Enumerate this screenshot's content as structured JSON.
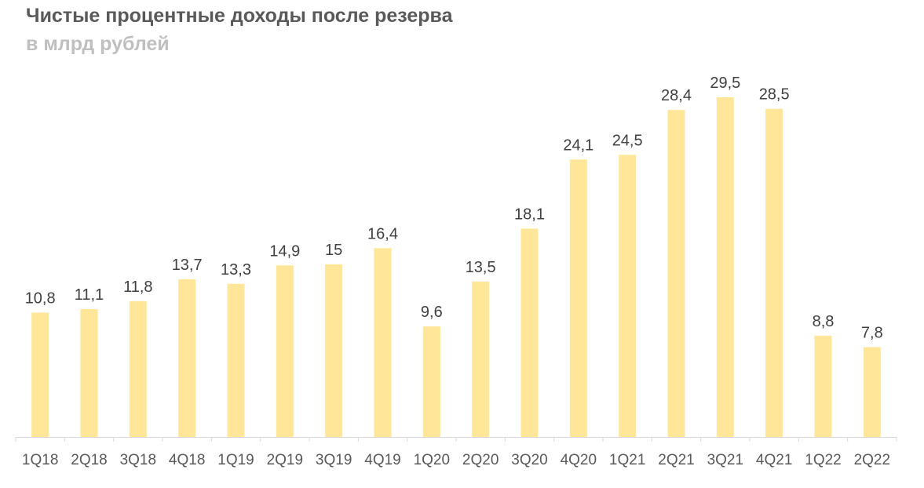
{
  "header": {
    "title": "Чистые процентные доходы после резерва",
    "subtitle": "в млрд рублей"
  },
  "colors": {
    "bar": "#ffe699",
    "axis": "#d9d9d9",
    "label": "#404040"
  },
  "chart_data": {
    "type": "bar",
    "title": "Чистые процентные доходы после резерва",
    "subtitle": "в млрд рублей",
    "categories": [
      "1Q18",
      "2Q18",
      "3Q18",
      "4Q18",
      "1Q19",
      "2Q19",
      "3Q19",
      "4Q19",
      "1Q20",
      "2Q20",
      "3Q20",
      "4Q20",
      "1Q21",
      "2Q21",
      "3Q21",
      "4Q21",
      "1Q22",
      "2Q22"
    ],
    "values": [
      10.8,
      11.1,
      11.8,
      13.7,
      13.3,
      14.9,
      15,
      16.4,
      9.6,
      13.5,
      18.1,
      24.1,
      24.5,
      28.4,
      29.5,
      28.5,
      8.8,
      7.8
    ],
    "value_labels": [
      "10,8",
      "11,1",
      "11,8",
      "13,7",
      "13,3",
      "14,9",
      "15",
      "16,4",
      "9,6",
      "13,5",
      "18,1",
      "24,1",
      "24,5",
      "28,4",
      "29,5",
      "28,5",
      "8,8",
      "7,8"
    ],
    "xlabel": "",
    "ylabel": "",
    "ylim": [
      0,
      30
    ],
    "grid": false,
    "legend": "none"
  }
}
